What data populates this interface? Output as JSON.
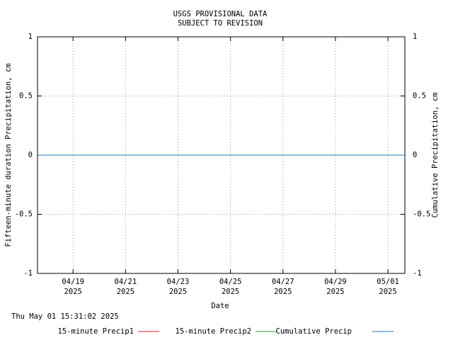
{
  "chart_data": {
    "type": "line",
    "title": "USGS PROVISIONAL DATA",
    "subtitle": "SUBJECT TO REVISION",
    "x_label": "Date",
    "y_label": "Fifteen-minute duration Precipitation, cm",
    "y2_label": "Cumulative Precipitation, cm",
    "timestamp": "Thu May 01 15:31:02 2025",
    "x": [
      "2025-04-17T15:30",
      "2025-05-01T15:30"
    ],
    "xlim": [
      "2025-04-17T15:30",
      "2025-05-01T15:30"
    ],
    "xticks": [
      {
        "value": "2025-04-19T00:00",
        "label": "04/19\n2025"
      },
      {
        "value": "2025-04-21T00:00",
        "label": "04/21\n2025"
      },
      {
        "value": "2025-04-23T00:00",
        "label": "04/23\n2025"
      },
      {
        "value": "2025-04-25T00:00",
        "label": "04/25\n2025"
      },
      {
        "value": "2025-04-27T00:00",
        "label": "04/27\n2025"
      },
      {
        "value": "2025-04-29T00:00",
        "label": "04/29\n2025"
      },
      {
        "value": "2025-05-01T00:00",
        "label": "05/01\n2025"
      }
    ],
    "ylim": [
      -1,
      1
    ],
    "yticks": [
      -1,
      -0.5,
      0,
      0.5,
      1
    ],
    "y2lim": [
      -1,
      1
    ],
    "y2ticks": [
      -1,
      -0.5,
      0,
      0.5,
      1
    ],
    "grid": true,
    "series": [
      {
        "name": "15-minute Precip1",
        "color": "#e41a1c",
        "values": [
          null,
          null
        ]
      },
      {
        "name": "15-minute Precip2",
        "color": "#2ca02c",
        "values": [
          0,
          0
        ]
      },
      {
        "name": "Cumulative Precip",
        "color": "#1f77b4",
        "values": [
          0,
          0
        ],
        "axis": "y2"
      }
    ]
  }
}
